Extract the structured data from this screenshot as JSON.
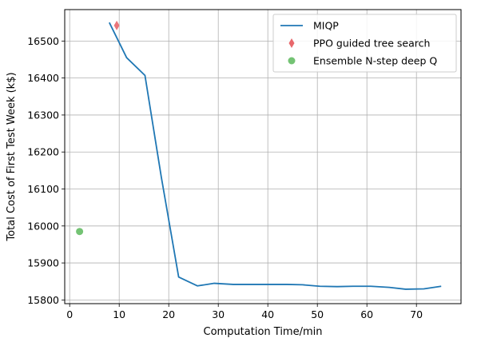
{
  "chart_data": {
    "type": "line",
    "xlabel": "Computation Time/min",
    "ylabel": "Total Cost of First Test Week (k$)",
    "xlim": [
      -1,
      79
    ],
    "ylim": [
      15790,
      16585
    ],
    "xticks": [
      0,
      10,
      20,
      30,
      40,
      50,
      60,
      70
    ],
    "yticks": [
      15800,
      15900,
      16000,
      16100,
      16200,
      16300,
      16400,
      16500
    ],
    "grid": true,
    "legend_position": "top-right",
    "series": [
      {
        "name": "MIQP",
        "kind": "line",
        "color": "#1f77b4",
        "x": [
          8,
          11.5,
          15.2,
          18.5,
          22,
          25.8,
          29.2,
          33,
          36.8,
          40.5,
          43.8,
          47,
          50.5,
          54,
          57.2,
          60.8,
          64.5,
          67.8,
          71.5,
          75
        ],
        "y": [
          16550,
          16455,
          16407,
          16132,
          15862,
          15838,
          15845,
          15842,
          15842,
          15842,
          15842,
          15841,
          15837,
          15836,
          15837,
          15837,
          15834,
          15829,
          15830,
          15837
        ]
      },
      {
        "name": "PPO guided tree search",
        "kind": "marker-diamond",
        "color": "#e8676b",
        "x": [
          9.5
        ],
        "y": [
          16542
        ]
      },
      {
        "name": "Ensemble N-step deep Q",
        "kind": "marker-circle",
        "color": "#5cb85c",
        "x": [
          2
        ],
        "y": [
          15985
        ]
      }
    ]
  }
}
